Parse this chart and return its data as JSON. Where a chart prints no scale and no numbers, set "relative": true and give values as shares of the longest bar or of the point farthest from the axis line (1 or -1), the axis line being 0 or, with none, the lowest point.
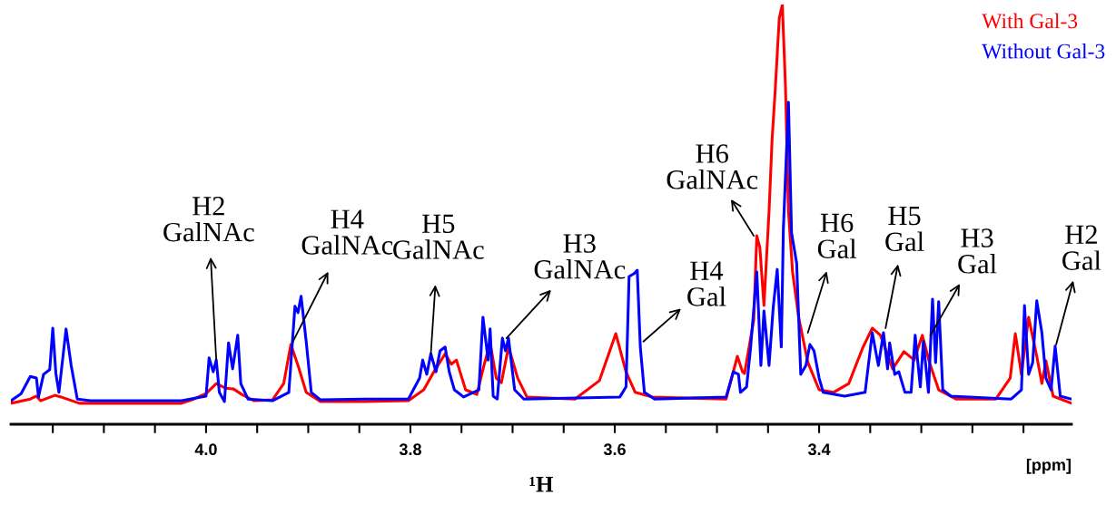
{
  "chart_data": {
    "type": "line",
    "relative": true,
    "xlabel": "¹H",
    "legend": "top right",
    "grid": false,
    "xlim": [
      4.191,
      3.153
    ],
    "xticks": [
      {
        "value": 4.15,
        "label": null
      },
      {
        "value": 4.1,
        "label": null
      },
      {
        "value": 4.05,
        "label": null
      },
      {
        "value": 4.0,
        "label": "4.0"
      },
      {
        "value": 3.95,
        "label": null
      },
      {
        "value": 3.9,
        "label": null
      },
      {
        "value": 3.85,
        "label": null
      },
      3.8,
      {
        "value": 3.75,
        "label": null
      },
      {
        "value": 3.7,
        "label": null
      },
      {
        "value": 3.65,
        "label": null
      },
      3.6,
      {
        "value": 3.55,
        "label": null
      },
      {
        "value": 3.5,
        "label": null
      },
      {
        "value": 3.45,
        "label": null
      },
      3.4,
      {
        "value": 3.35,
        "label": null
      },
      {
        "value": 3.3,
        "label": null
      },
      {
        "value": 3.25,
        "label": null
      },
      {
        "value": 3.2,
        "label": null
      }
    ],
    "series": [
      {
        "name": "With Gal-3",
        "color": "#ff0000",
        "x": [
          4.191,
          4.172,
          4.166,
          4.162,
          4.148,
          4.142,
          4.124,
          4.024,
          4.012,
          4.0,
          3.99,
          3.981,
          3.973,
          3.965,
          3.953,
          3.935,
          3.924,
          3.917,
          3.91,
          3.902,
          3.888,
          3.846,
          3.802,
          3.787,
          3.777,
          3.766,
          3.76,
          3.755,
          3.746,
          3.735,
          3.728,
          3.722,
          3.716,
          3.711,
          3.704,
          3.695,
          3.686,
          3.639,
          3.615,
          3.599,
          3.589,
          3.58,
          3.563,
          3.491,
          3.48,
          3.475,
          3.473,
          3.464,
          3.461,
          3.458,
          3.454,
          3.449,
          3.446,
          3.443,
          3.439,
          3.436,
          3.433,
          3.43,
          3.426,
          3.42,
          3.411,
          3.4,
          3.386,
          3.371,
          3.357,
          3.348,
          3.34,
          3.328,
          3.317,
          3.307,
          3.299,
          3.292,
          3.283,
          3.266,
          3.227,
          3.213,
          3.208,
          3.202,
          3.195,
          3.187,
          3.182,
          3.178,
          3.171,
          3.153
        ],
        "values": [
          0.05,
          0.06,
          0.067,
          0.056,
          0.069,
          0.065,
          0.05,
          0.05,
          0.06,
          0.073,
          0.097,
          0.086,
          0.084,
          0.071,
          0.056,
          0.058,
          0.097,
          0.19,
          0.14,
          0.076,
          0.054,
          0.054,
          0.056,
          0.082,
          0.125,
          0.168,
          0.143,
          0.153,
          0.082,
          0.071,
          0.14,
          0.194,
          0.11,
          0.099,
          0.184,
          0.11,
          0.065,
          0.06,
          0.104,
          0.216,
          0.125,
          0.076,
          0.065,
          0.06,
          0.162,
          0.125,
          0.121,
          0.248,
          0.449,
          0.421,
          0.283,
          0.508,
          0.68,
          0.795,
          0.968,
          1.0,
          0.81,
          0.508,
          0.363,
          0.255,
          0.147,
          0.082,
          0.076,
          0.097,
          0.184,
          0.229,
          0.212,
          0.132,
          0.173,
          0.153,
          0.212,
          0.147,
          0.082,
          0.06,
          0.06,
          0.11,
          0.216,
          0.119,
          0.255,
          0.162,
          0.097,
          0.151,
          0.067,
          0.05
        ]
      },
      {
        "name": "Without Gal-3",
        "color": "#0000ff",
        "x": [
          4.191,
          4.181,
          4.172,
          4.166,
          4.164,
          4.159,
          4.153,
          4.15,
          4.147,
          4.144,
          4.137,
          4.132,
          4.126,
          4.113,
          4.024,
          4.0,
          3.997,
          3.993,
          3.99,
          3.987,
          3.982,
          3.978,
          3.974,
          3.969,
          3.966,
          3.959,
          3.935,
          3.919,
          3.913,
          3.91,
          3.907,
          3.902,
          3.897,
          3.888,
          3.846,
          3.802,
          3.791,
          3.788,
          3.784,
          3.78,
          3.775,
          3.771,
          3.766,
          3.762,
          3.757,
          3.748,
          3.733,
          3.729,
          3.724,
          3.722,
          3.719,
          3.715,
          3.71,
          3.707,
          3.704,
          3.698,
          3.689,
          3.595,
          3.589,
          3.586,
          3.581,
          3.578,
          3.575,
          3.571,
          3.561,
          3.491,
          3.484,
          3.479,
          3.477,
          3.471,
          3.467,
          3.461,
          3.457,
          3.454,
          3.449,
          3.445,
          3.441,
          3.437,
          3.435,
          3.43,
          3.427,
          3.422,
          3.418,
          3.413,
          3.409,
          3.405,
          3.4,
          3.396,
          3.375,
          3.355,
          3.348,
          3.342,
          3.337,
          3.333,
          3.331,
          3.326,
          3.322,
          3.316,
          3.31,
          3.306,
          3.301,
          3.298,
          3.293,
          3.289,
          3.286,
          3.283,
          3.279,
          3.271,
          3.212,
          3.202,
          3.199,
          3.195,
          3.191,
          3.187,
          3.182,
          3.178,
          3.173,
          3.169,
          3.164,
          3.153
        ],
        "values": [
          0.056,
          0.073,
          0.114,
          0.11,
          0.065,
          0.119,
          0.13,
          0.229,
          0.121,
          0.076,
          0.227,
          0.14,
          0.06,
          0.056,
          0.056,
          0.067,
          0.158,
          0.125,
          0.153,
          0.076,
          0.054,
          0.194,
          0.132,
          0.212,
          0.097,
          0.06,
          0.056,
          0.076,
          0.281,
          0.266,
          0.305,
          0.197,
          0.076,
          0.058,
          0.06,
          0.06,
          0.11,
          0.153,
          0.119,
          0.168,
          0.125,
          0.175,
          0.184,
          0.125,
          0.082,
          0.065,
          0.082,
          0.255,
          0.153,
          0.227,
          0.067,
          0.06,
          0.205,
          0.175,
          0.205,
          0.082,
          0.06,
          0.065,
          0.089,
          0.352,
          0.359,
          0.367,
          0.184,
          0.076,
          0.06,
          0.065,
          0.125,
          0.119,
          0.076,
          0.089,
          0.184,
          0.363,
          0.14,
          0.27,
          0.14,
          0.276,
          0.369,
          0.184,
          0.464,
          0.767,
          0.456,
          0.384,
          0.119,
          0.14,
          0.19,
          0.175,
          0.11,
          0.076,
          0.067,
          0.076,
          0.218,
          0.14,
          0.218,
          0.132,
          0.194,
          0.119,
          0.125,
          0.076,
          0.076,
          0.212,
          0.089,
          0.197,
          0.076,
          0.298,
          0.147,
          0.292,
          0.082,
          0.067,
          0.06,
          0.082,
          0.283,
          0.119,
          0.147,
          0.294,
          0.218,
          0.11,
          0.082,
          0.186,
          0.067,
          0.06
        ]
      }
    ],
    "annotations": [
      {
        "text": "H2\nGalNAc",
        "x": 3.99,
        "y": 0.153
      },
      {
        "text": "H4\nGalNAc",
        "x": 3.915,
        "y": 0.197
      },
      {
        "text": "H5\nGalNAc",
        "x": 3.78,
        "y": 0.168
      },
      {
        "text": "H3\nGalNAc",
        "x": 3.706,
        "y": 0.205
      },
      {
        "text": "H4\nGal",
        "x": 3.572,
        "y": 0.197
      },
      {
        "text": "H6\nGalNAc",
        "x": 3.464,
        "y": 0.449
      },
      {
        "text": "H6\nGal",
        "x": 3.411,
        "y": 0.218
      },
      {
        "text": "H5\nGal",
        "x": 3.335,
        "y": 0.229
      },
      {
        "text": "H3\nGal",
        "x": 3.291,
        "y": 0.212
      },
      {
        "text": "H2\nGal",
        "x": 3.168,
        "y": 0.19
      },
      "[ppm]"
    ]
  }
}
